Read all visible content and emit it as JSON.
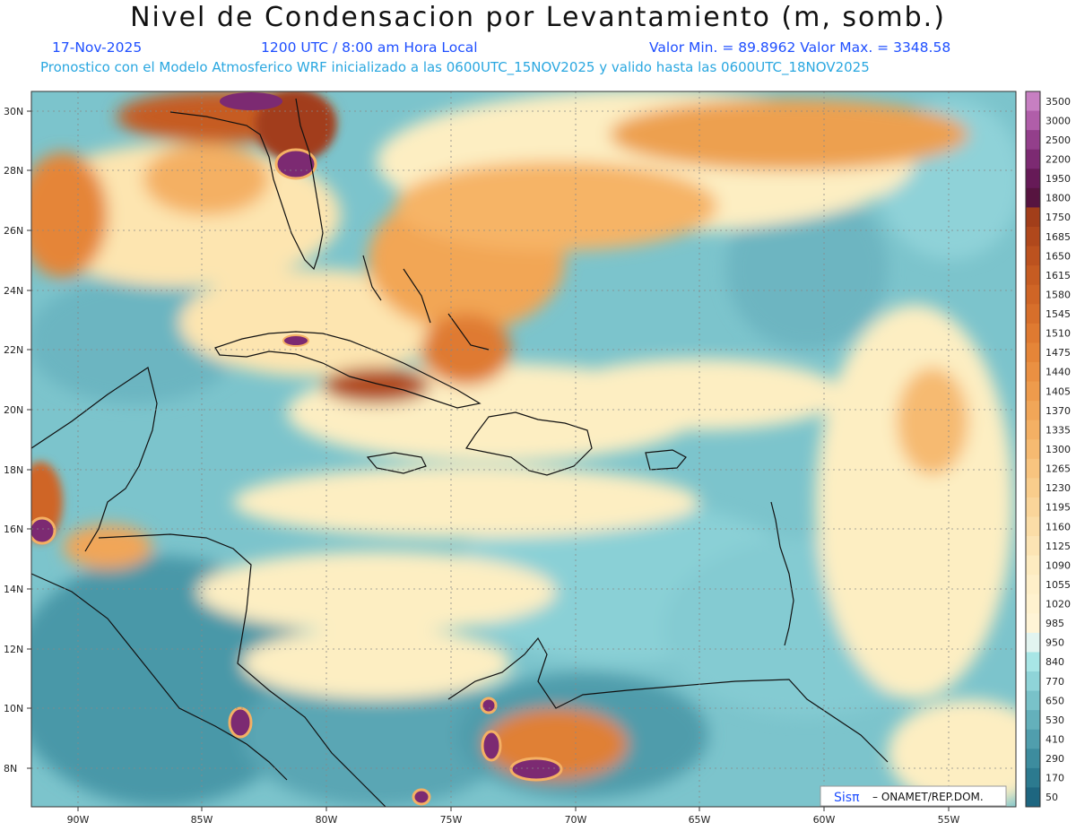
{
  "header": {
    "title": "Nivel de Condensacion por Levantamiento (m, somb.)",
    "date": "17-Nov-2025",
    "time": "1200 UTC / 8:00 am Hora Local",
    "minmax": "Valor Min. = 89.8962  Valor Max. = 3348.58",
    "model_line": "Pronostico con el Modelo Atmosferico WRF inicializado a las 0600UTC_15NOV2025 y valido hasta las  0600UTC_18NOV2025"
  },
  "map": {
    "lat_labels": [
      "30N",
      "28N",
      "26N",
      "24N",
      "22N",
      "20N",
      "18N",
      "16N",
      "14N",
      "12N",
      "10N",
      "8N"
    ],
    "lon_labels": [
      "90W",
      "85W",
      "80W",
      "75W",
      "70W",
      "65W",
      "60W",
      "55W"
    ],
    "credit_logo": "Sisπ",
    "credit_text": "– ONAMET/REP.DOM.",
    "colorbar": {
      "labels": [
        "3500",
        "3000",
        "2500",
        "2200",
        "1950",
        "1800",
        "1750",
        "1685",
        "1650",
        "1615",
        "1580",
        "1545",
        "1510",
        "1475",
        "1440",
        "1405",
        "1370",
        "1335",
        "1300",
        "1265",
        "1230",
        "1195",
        "1160",
        "1125",
        "1090",
        "1055",
        "1020",
        "985",
        "950",
        "840",
        "770",
        "650",
        "530",
        "410",
        "290",
        "170",
        "50"
      ],
      "colors": [
        "#c77fc2",
        "#b05ea9",
        "#933f8b",
        "#7c2a72",
        "#661a57",
        "#571440",
        "#a23e1a",
        "#b0481c",
        "#bc521f",
        "#c65c22",
        "#cf6526",
        "#d76f2b",
        "#df7a31",
        "#e58538",
        "#ea9042",
        "#ee9b4c",
        "#f1a658",
        "#f4b064",
        "#f6ba71",
        "#f8c47f",
        "#f9cd8c",
        "#fad59a",
        "#fbdda7",
        "#fcE4b4",
        "#fdebc0",
        "#feefc9",
        "#fff2cf",
        "#fff4d6",
        "#e2f4f0",
        "#a8e6e6",
        "#8fd4d8",
        "#79c2c9",
        "#64b0bb",
        "#509ead",
        "#3d8c9e",
        "#2c7a8f",
        "#1e6680"
      ]
    }
  }
}
